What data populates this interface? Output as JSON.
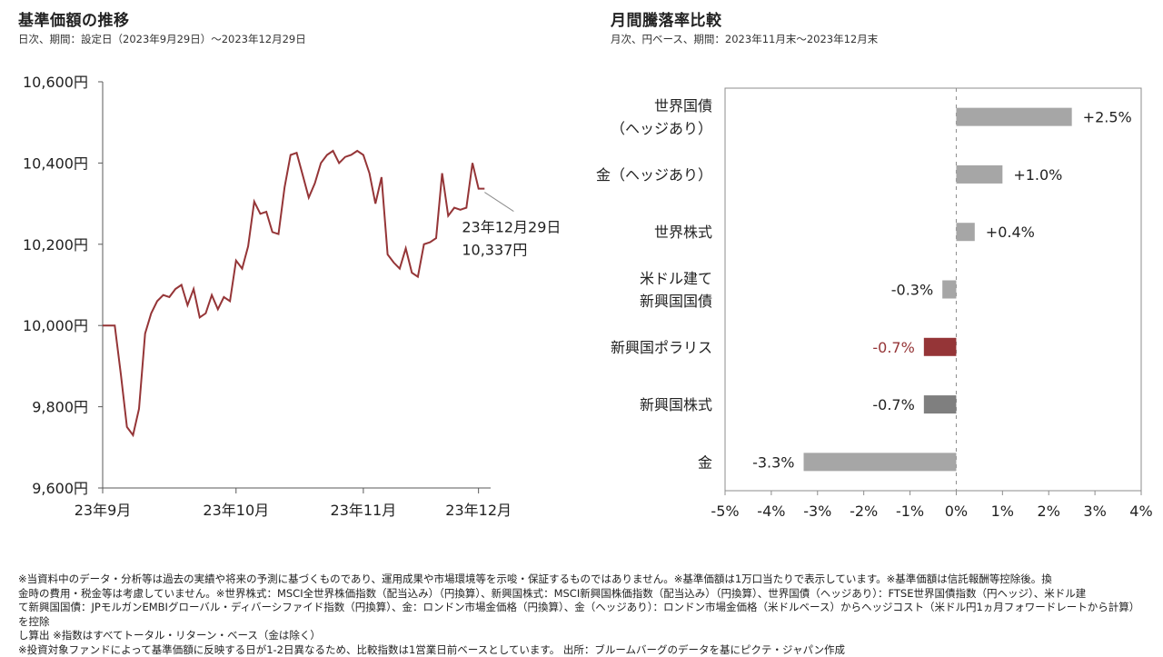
{
  "left": {
    "title": "基準価額の推移",
    "subtitle": "日次、期間：設定日（2023年9月29日）～2023年12月29日",
    "callout_date": "23年12月29日",
    "callout_value": "10,337円"
  },
  "right": {
    "title": "月間騰落率比較",
    "subtitle": "月次、円ベース、期間：2023年11月末～2023年12月末"
  },
  "chart_data": [
    {
      "type": "line",
      "title": "基準価額の推移",
      "ylim": [
        9600,
        10600
      ],
      "yticks": [
        9600,
        9800,
        10000,
        10200,
        10400,
        10600
      ],
      "ytick_labels": [
        "9,600円",
        "9,800円",
        "10,000円",
        "10,200円",
        "10,400円",
        "10,600円"
      ],
      "xtick_labels": [
        "23年9月",
        "23年10月",
        "23年11月",
        "23年12月"
      ],
      "xlim": [
        0,
        64
      ],
      "xtick_positions": [
        0,
        22,
        43,
        62
      ],
      "color": "#953537",
      "x": [
        0,
        1,
        2,
        3,
        4,
        5,
        6,
        7,
        8,
        9,
        10,
        11,
        12,
        13,
        14,
        15,
        16,
        17,
        18,
        19,
        20,
        21,
        22,
        23,
        24,
        25,
        26,
        27,
        28,
        29,
        30,
        31,
        32,
        33,
        34,
        35,
        36,
        37,
        38,
        39,
        40,
        41,
        42,
        43,
        44,
        45,
        46,
        47,
        48,
        49,
        50,
        51,
        52,
        53,
        54,
        55,
        56,
        57,
        58,
        59,
        60,
        61,
        62,
        63
      ],
      "values": [
        10000,
        10000,
        10000,
        9880,
        9750,
        9730,
        9795,
        9980,
        10030,
        10060,
        10075,
        10070,
        10090,
        10100,
        10050,
        10090,
        10020,
        10030,
        10075,
        10040,
        10070,
        10060,
        10160,
        10140,
        10195,
        10305,
        10275,
        10280,
        10230,
        10225,
        10340,
        10420,
        10425,
        10370,
        10315,
        10350,
        10400,
        10420,
        10430,
        10400,
        10415,
        10420,
        10430,
        10420,
        10375,
        10300,
        10365,
        10175,
        10155,
        10140,
        10190,
        10130,
        10120,
        10200,
        10205,
        10215,
        10375,
        10270,
        10290,
        10285,
        10290,
        10400,
        10337,
        10337
      ]
    },
    {
      "type": "bar",
      "orientation": "horizontal",
      "title": "月間騰落率比較",
      "categories": [
        [
          "世界国債",
          "（ヘッジあり）"
        ],
        [
          "金（ヘッジあり）"
        ],
        [
          "世界株式"
        ],
        [
          "米ドル建て",
          "新興国国債"
        ],
        [
          "新興国ポラリス"
        ],
        [
          "新興国株式"
        ],
        [
          "金"
        ]
      ],
      "values": [
        2.5,
        1.0,
        0.4,
        -0.3,
        -0.7,
        -0.7,
        -3.3
      ],
      "value_labels": [
        "+2.5%",
        "+1.0%",
        "+0.4%",
        "-0.3%",
        "-0.7%",
        "-0.7%",
        "-3.3%"
      ],
      "colors": [
        "#a6a6a6",
        "#a6a6a6",
        "#a6a6a6",
        "#a6a6a6",
        "#953537",
        "#7f7f7f",
        "#a6a6a6"
      ],
      "label_colors": [
        "#222222",
        "#222222",
        "#222222",
        "#222222",
        "#953537",
        "#222222",
        "#222222"
      ],
      "xlim": [
        -5,
        4
      ],
      "xticks": [
        -5,
        -4,
        -3,
        -2,
        -1,
        0,
        1,
        2,
        3,
        4
      ],
      "xtick_labels": [
        "-5%",
        "-4%",
        "-3%",
        "-2%",
        "-1%",
        "0%",
        "1%",
        "2%",
        "3%",
        "4%"
      ]
    }
  ],
  "footnotes": [
    "※当資料中のデータ・分析等は過去の実績や将来の予測に基づくものであり、運用成果や市場環境等を示唆・保証するものではありません。※基準価額は1万口当たりで表示しています。※基準価額は信託報酬等控除後。換",
    "金時の費用・税金等は考慮していません。※世界株式：MSCI全世界株価指数（配当込み）（円換算）、新興国株式：MSCI新興国株価指数（配当込み）（円換算）、世界国債（ヘッジあり）：FTSE世界国債指数（円ヘッジ）、米ドル建",
    "て新興国国債：JPモルガンEMBIグローバル・ディバーシファイド指数（円換算）、金：ロンドン市場金価格（円換算）、金（ヘッジあり）：ロンドン市場金価格（米ドルベース）からヘッジコスト（米ドル円1ヵ月フォワードレートから計算）を控除",
    "し算出 ※指数はすべてトータル・リターン・ベース（金は除く）",
    "※投資対象ファンドによって基準価額に反映する日が1-2日異なるため、比較指数は1営業日前ベースとしています。 出所：ブルームバーグのデータを基にピクテ・ジャパン作成"
  ]
}
